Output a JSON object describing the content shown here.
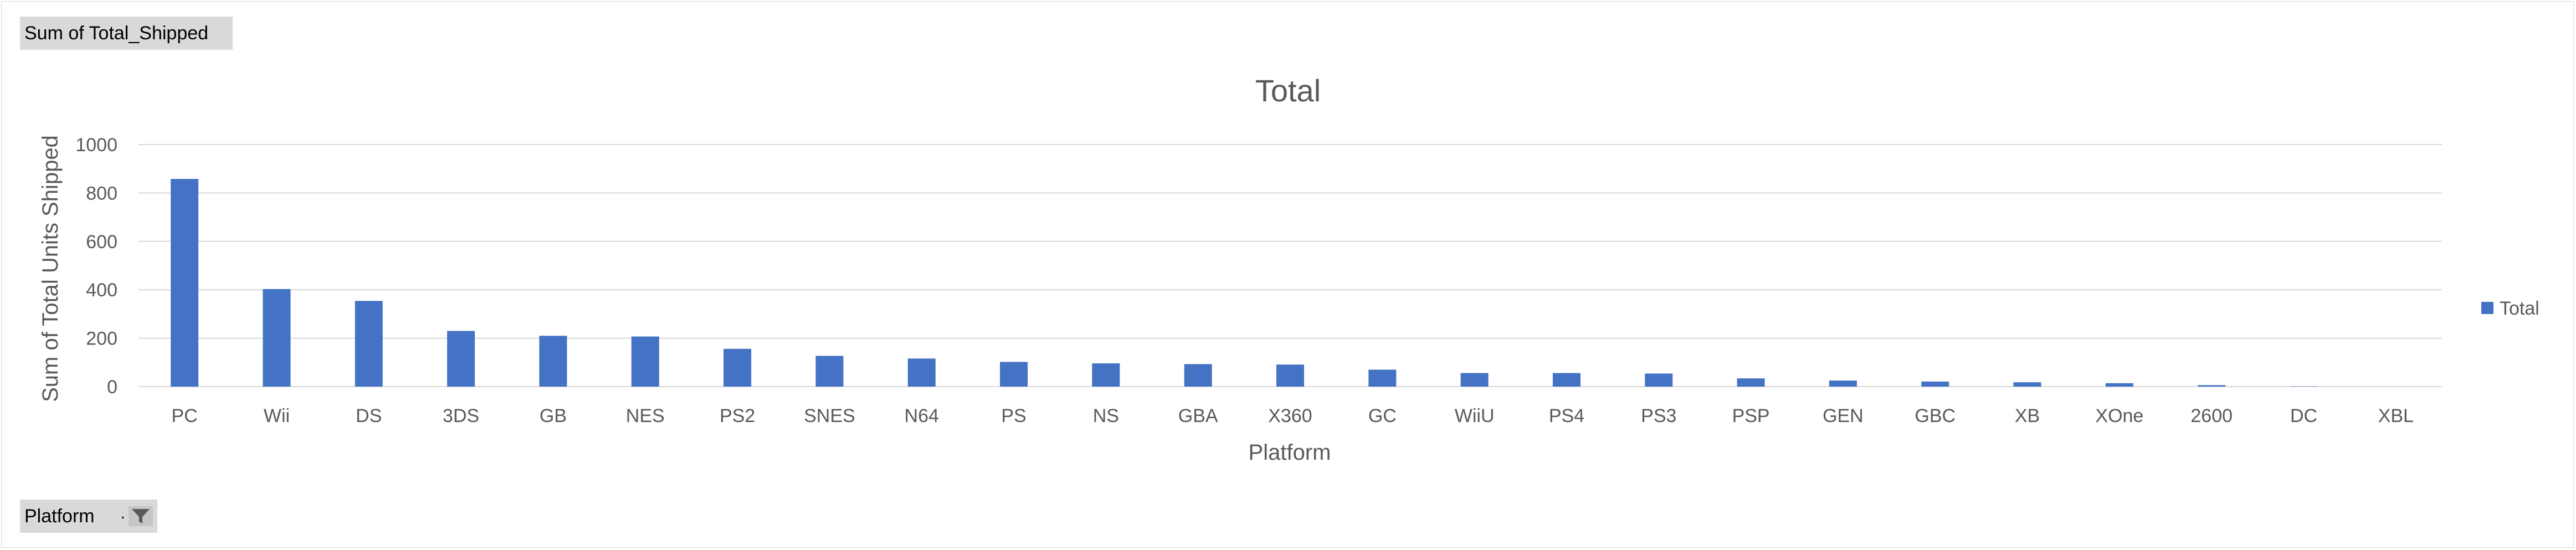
{
  "pivot": {
    "values_field_label": "Sum of Total_Shipped",
    "axis_field_label": "Platform",
    "filter_icon": "filter-funnel-icon"
  },
  "colors": {
    "bar": "#4472C4",
    "gridline": "#d9d9d9",
    "field_button_bg": "#d9d9d9",
    "text": "#595959"
  },
  "chart_data": {
    "type": "bar",
    "title": "Total",
    "xlabel": "Platform",
    "ylabel": "Sum of Total Units Shipped",
    "ylim": [
      0,
      1000
    ],
    "yticks": [
      0,
      200,
      400,
      600,
      800,
      1000
    ],
    "grid": true,
    "legend_position": "right",
    "categories": [
      "PC",
      "Wii",
      "DS",
      "3DS",
      "GB",
      "NES",
      "PS2",
      "SNES",
      "N64",
      "PS",
      "NS",
      "GBA",
      "X360",
      "GC",
      "WiiU",
      "PS4",
      "PS3",
      "PSP",
      "GEN",
      "GBC",
      "XB",
      "XOne",
      "2600",
      "DC",
      "XBL"
    ],
    "series": [
      {
        "name": "Total",
        "values": [
          858,
          403,
          354,
          230,
          210,
          207,
          156,
          127,
          116,
          102,
          96,
          93,
          91,
          70,
          56,
          56,
          54,
          34,
          25,
          21,
          18,
          14,
          6,
          1,
          0
        ]
      }
    ]
  }
}
